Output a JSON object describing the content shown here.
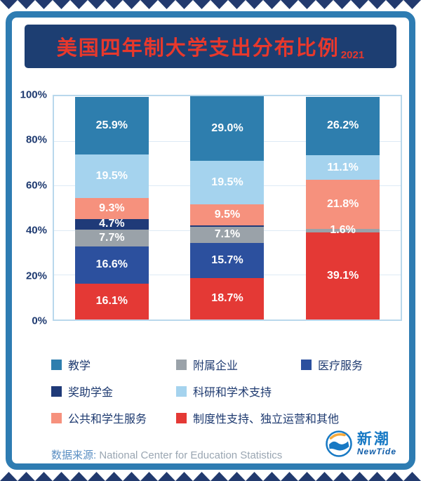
{
  "title": {
    "text": "美国四年制大学支出分布比例",
    "year": "2021"
  },
  "colors": {
    "frame": "#2e7cb2",
    "banner_bg": "#1d3e72",
    "title_red": "#e8382c",
    "zigzag": "#223a6e",
    "axis_text": "#1e3a70",
    "plot_border": "#b9d8ec",
    "teaching": "#2e7eae",
    "auxiliary": "#9aa2a9",
    "medical": "#2c509e",
    "scholarship": "#1f3a78",
    "research": "#a5d3ee",
    "public_student": "#f6917d",
    "institutional": "#e43935",
    "logo_blue": "#1779c4",
    "logo_orange": "#f5a93b"
  },
  "chart_data": {
    "type": "bar",
    "stacked": true,
    "percent": true,
    "ylim": [
      0,
      100
    ],
    "yticks": [
      "100%",
      "80%",
      "60%",
      "40%",
      "20%",
      "0%"
    ],
    "grid": true,
    "legend_position": "bottom",
    "categories": [
      "",
      "",
      ""
    ],
    "series": [
      {
        "name": "教学",
        "color": "#2e7eae",
        "values": [
          25.9,
          29.0,
          26.2
        ],
        "labels": [
          "25.9%",
          "29.0%",
          "26.2%"
        ]
      },
      {
        "name": "科研和学术支持",
        "color": "#a5d3ee",
        "values": [
          19.5,
          19.5,
          11.1
        ],
        "labels": [
          "19.5%",
          "19.5%",
          "11.1%"
        ]
      },
      {
        "name": "公共和学生服务",
        "color": "#f6917d",
        "values": [
          9.3,
          9.5,
          21.8
        ],
        "labels": [
          "9.3%",
          "9.5%",
          "21.8%"
        ]
      },
      {
        "name": "奖助学金",
        "color": "#1f3a78",
        "values": [
          4.7,
          0.5,
          0
        ],
        "labels": [
          "4.7%",
          "",
          ""
        ]
      },
      {
        "name": "附属企业",
        "color": "#9aa2a9",
        "values": [
          7.7,
          7.1,
          1.6
        ],
        "labels": [
          "7.7%",
          "7.1%",
          "1.6%"
        ]
      },
      {
        "name": "医疗服务",
        "color": "#2c509e",
        "values": [
          16.6,
          15.7,
          0
        ],
        "labels": [
          "16.6%",
          "15.7%",
          ""
        ]
      },
      {
        "name": "制度性支持、独立运营和其他",
        "color": "#e43935",
        "values": [
          16.1,
          18.7,
          39.1
        ],
        "labels": [
          "16.1%",
          "18.7%",
          "39.1%"
        ]
      }
    ]
  },
  "legend": {
    "rows": [
      [
        {
          "label": "教学",
          "color": "#2e7eae"
        },
        {
          "label": "附属企业",
          "color": "#9aa2a9"
        },
        {
          "label": "医疗服务",
          "color": "#2c509e"
        }
      ],
      [
        {
          "label": "奖助学金",
          "color": "#1f3a78"
        },
        {
          "label": "科研和学术支持",
          "color": "#a5d3ee"
        }
      ],
      [
        {
          "label": "公共和学生服务",
          "color": "#f6917d"
        },
        {
          "label": "制度性支持、独立运营和其他",
          "color": "#e43935"
        }
      ]
    ]
  },
  "source": {
    "label": "数据来源:",
    "text": "National Center for Education Statistics"
  },
  "logo": {
    "name_cn": "新潮",
    "name_en": "NewTide"
  }
}
